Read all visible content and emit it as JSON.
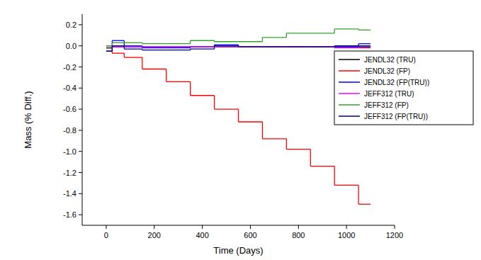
{
  "chart_data": {
    "type": "step",
    "x_label": "Time (Days)",
    "y_label": "Mass (% Diff.)",
    "x": [
      0,
      25,
      75,
      150,
      250,
      350,
      450,
      550,
      650,
      750,
      850,
      950,
      1050,
      1100
    ],
    "series": [
      {
        "name": "JENDL32 (TRU)",
        "color": "#000000",
        "values": [
          -0.02,
          -0.01,
          -0.01,
          -0.01,
          -0.01,
          -0.01,
          -0.01,
          -0.01,
          -0.01,
          -0.01,
          -0.01,
          -0.01,
          -0.01,
          -0.01
        ]
      },
      {
        "name": "JENDL32 (FP)",
        "color": "#ff0000",
        "values": [
          0,
          -0.07,
          -0.11,
          -0.22,
          -0.34,
          -0.47,
          -0.6,
          -0.72,
          -0.88,
          -0.98,
          -1.14,
          -1.32,
          -1.5,
          -1.5
        ]
      },
      {
        "name": "JENDL32 (FP(TRU))",
        "color": "#0000ff",
        "values": [
          -0.05,
          0.05,
          0.0,
          -0.02,
          -0.02,
          -0.01,
          0.01,
          -0.01,
          -0.01,
          -0.01,
          -0.01,
          -0.01,
          0.02,
          0.02
        ]
      },
      {
        "name": "JEFF312 (TRU)",
        "color": "#ff00ff",
        "values": [
          0,
          -0.01,
          -0.01,
          -0.01,
          -0.01,
          -0.01,
          -0.01,
          -0.01,
          -0.01,
          -0.01,
          -0.01,
          -0.02,
          -0.02,
          -0.02
        ]
      },
      {
        "name": "JEFF312 (FP)",
        "color": "#33a02c",
        "values": [
          0,
          0.03,
          0.03,
          0.02,
          0.02,
          0.05,
          0.04,
          0.04,
          0.08,
          0.12,
          0.12,
          0.16,
          0.15,
          0.15
        ]
      },
      {
        "name": "JEFF312 (FP(TRU))",
        "color": "#000080",
        "values": [
          -0.05,
          0.0,
          -0.03,
          -0.04,
          -0.04,
          -0.03,
          0.0,
          -0.01,
          -0.01,
          -0.01,
          -0.01,
          0.0,
          0.0,
          0.0
        ]
      }
    ],
    "xlim": [
      -100,
      1200
    ],
    "xticks": [
      0,
      200,
      400,
      600,
      800,
      1000,
      1200
    ],
    "ylim": [
      -1.7,
      0.3
    ],
    "yticks": [
      -1.6,
      -1.4,
      -1.2,
      {
        "value": -1.0,
        "label": "-1.0"
      },
      -0.8,
      -0.6,
      -0.4,
      -0.2,
      {
        "value": 0,
        "label": "0.0"
      },
      0.2
    ],
    "grid": false,
    "legend": "right"
  }
}
